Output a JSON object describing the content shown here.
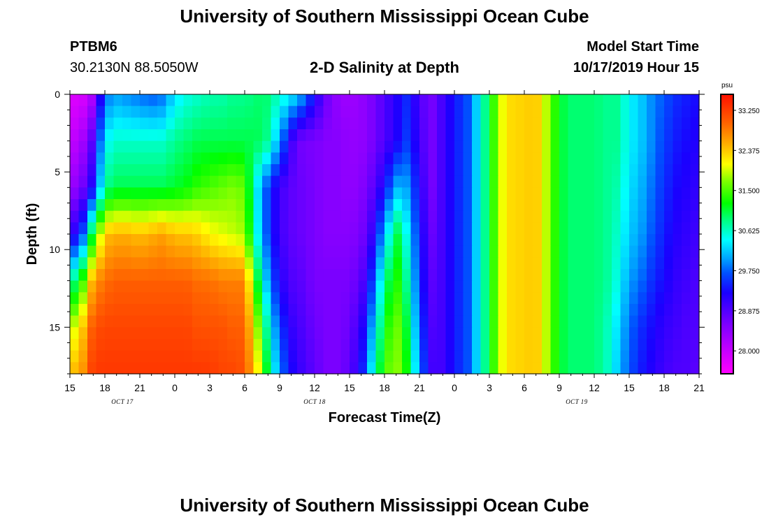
{
  "title_top": "University of Southern Mississippi Ocean Cube",
  "title_bottom": "University of Southern Mississippi Ocean Cube",
  "station": {
    "id": "PTBM6",
    "coords": "30.2130N 88.5050W"
  },
  "plot_title": "2-D Salinity at Depth",
  "model_start": {
    "label": "Model Start Time",
    "value": "10/17/2019 Hour 15"
  },
  "chart_data": {
    "type": "heatmap",
    "title": "2-D Salinity at Depth",
    "xlabel": "Forecast Time(Z)",
    "ylabel": "Depth (ft)",
    "units": "psu",
    "x_ticks": [
      "15",
      "18",
      "21",
      "0",
      "3",
      "6",
      "9",
      "12",
      "15",
      "18",
      "21",
      "0",
      "3",
      "6",
      "9",
      "12",
      "15",
      "18",
      "21"
    ],
    "x_tick_hours": [
      0,
      3,
      6,
      9,
      12,
      15,
      18,
      21,
      24,
      27,
      30,
      33,
      36,
      39,
      42,
      45,
      48,
      51,
      54
    ],
    "date_labels": [
      {
        "text": "OCT 17",
        "hour": 4.5
      },
      {
        "text": "OCT 18",
        "hour": 21
      },
      {
        "text": "OCT 19",
        "hour": 43.5
      }
    ],
    "y_ticks": [
      "0",
      "5",
      "10",
      "15"
    ],
    "y_tick_values": [
      0,
      5,
      10,
      15
    ],
    "ylim": [
      0,
      18
    ],
    "xlim": [
      0,
      54
    ],
    "colorbar": {
      "vmin": 27.5,
      "vmax": 33.6,
      "ticks": [
        "33.250",
        "32.375",
        "31.500",
        "30.625",
        "29.750",
        "28.875",
        "28.000"
      ],
      "tick_values": [
        33.25,
        32.375,
        31.5,
        30.625,
        29.75,
        28.875,
        28.0
      ]
    },
    "depth_rows": [
      0,
      3,
      6,
      9,
      12,
      15,
      18
    ],
    "times_hours": [
      0,
      1,
      2,
      3,
      4,
      5,
      6,
      7,
      8,
      9,
      10,
      11,
      12,
      13,
      14,
      15,
      16,
      17,
      18,
      19,
      20,
      21,
      22,
      23,
      24,
      25,
      26,
      27,
      28,
      29,
      30,
      31,
      32,
      33,
      34,
      35,
      36,
      37,
      38,
      39,
      40,
      41,
      42,
      43,
      44,
      45,
      46,
      47,
      48,
      49,
      50,
      51,
      52,
      53,
      54
    ],
    "salinity": [
      [
        27.8,
        27.8,
        28.2,
        29.8,
        30.0,
        29.9,
        29.8,
        29.7,
        29.8,
        30.3,
        30.5,
        30.6,
        30.7,
        30.7,
        30.8,
        30.8,
        30.9,
        30.9,
        30.6,
        30.4,
        30.0,
        29.3,
        28.7,
        28.4,
        28.3,
        28.4,
        28.6,
        28.9,
        29.2,
        29.5,
        28.9,
        28.6,
        29.0,
        29.4,
        29.6,
        30.3,
        31.1,
        32.0,
        32.3,
        32.3,
        32.4,
        31.8,
        31.1,
        30.9,
        30.9,
        30.9,
        30.8,
        30.8,
        30.4,
        30.2,
        29.9,
        29.7,
        29.5,
        29.4,
        29.3
      ],
      [
        28.0,
        28.2,
        28.9,
        30.4,
        30.6,
        30.6,
        30.6,
        30.6,
        30.6,
        30.8,
        30.9,
        31.0,
        31.0,
        31.0,
        31.0,
        31.0,
        31.0,
        30.8,
        30.0,
        29.0,
        28.6,
        28.6,
        28.5,
        28.5,
        28.4,
        28.4,
        28.6,
        28.9,
        29.2,
        29.6,
        29.0,
        28.6,
        29.0,
        29.4,
        29.6,
        30.3,
        31.1,
        32.0,
        32.3,
        32.3,
        32.4,
        31.8,
        31.1,
        30.9,
        30.9,
        30.9,
        30.8,
        30.8,
        30.4,
        30.2,
        29.9,
        29.6,
        29.4,
        29.3,
        29.2
      ],
      [
        28.3,
        28.6,
        29.3,
        30.8,
        31.0,
        31.0,
        31.0,
        31.0,
        31.0,
        31.1,
        31.2,
        31.4,
        31.5,
        31.6,
        31.7,
        31.6,
        30.4,
        29.6,
        29.0,
        28.8,
        28.7,
        28.6,
        28.5,
        28.5,
        28.4,
        28.5,
        28.8,
        29.3,
        30.1,
        30.0,
        29.2,
        28.6,
        29.0,
        29.4,
        29.6,
        30.3,
        31.1,
        32.0,
        32.3,
        32.3,
        32.4,
        31.8,
        31.1,
        30.9,
        30.9,
        30.9,
        30.8,
        30.7,
        30.3,
        30.1,
        29.8,
        29.5,
        29.3,
        29.2,
        29.1
      ],
      [
        29.0,
        29.5,
        31.2,
        32.4,
        32.5,
        32.5,
        32.4,
        32.5,
        32.6,
        32.4,
        32.4,
        32.3,
        32.1,
        32.0,
        31.9,
        31.8,
        30.5,
        29.6,
        29.0,
        28.8,
        28.7,
        28.6,
        28.5,
        28.5,
        28.5,
        28.6,
        29.1,
        30.1,
        31.1,
        30.4,
        29.4,
        28.7,
        29.0,
        29.4,
        29.6,
        30.3,
        31.1,
        32.0,
        32.3,
        32.3,
        32.4,
        31.8,
        31.1,
        30.9,
        30.9,
        30.9,
        30.8,
        30.6,
        30.2,
        30.0,
        29.7,
        29.4,
        29.2,
        29.1,
        29.0
      ],
      [
        30.6,
        31.3,
        32.6,
        32.9,
        33.0,
        33.0,
        33.0,
        33.0,
        33.0,
        33.0,
        33.0,
        32.9,
        32.9,
        32.8,
        32.8,
        32.8,
        31.2,
        30.0,
        29.2,
        28.9,
        28.8,
        28.6,
        28.6,
        28.6,
        28.6,
        28.8,
        29.6,
        30.8,
        31.4,
        30.7,
        29.5,
        28.8,
        29.0,
        29.4,
        29.6,
        30.3,
        31.1,
        32.0,
        32.3,
        32.3,
        32.4,
        31.8,
        31.1,
        30.9,
        30.9,
        30.9,
        30.8,
        30.5,
        30.0,
        29.8,
        29.5,
        29.3,
        29.1,
        29.0,
        28.9
      ],
      [
        31.8,
        32.3,
        33.1,
        33.2,
        33.2,
        33.2,
        33.2,
        33.2,
        33.2,
        33.2,
        33.2,
        33.1,
        33.1,
        33.1,
        33.0,
        33.0,
        31.9,
        30.6,
        29.6,
        29.1,
        28.9,
        28.7,
        28.6,
        28.6,
        28.7,
        29.1,
        30.1,
        31.2,
        31.7,
        31.0,
        29.7,
        28.9,
        29.0,
        29.4,
        29.6,
        30.3,
        31.1,
        32.0,
        32.3,
        32.3,
        32.4,
        31.8,
        31.1,
        30.9,
        30.9,
        30.9,
        30.7,
        30.3,
        29.8,
        29.5,
        29.3,
        29.1,
        29.0,
        28.9,
        28.9
      ],
      [
        32.4,
        32.6,
        33.3,
        33.3,
        33.3,
        33.3,
        33.3,
        33.3,
        33.3,
        33.3,
        33.3,
        33.3,
        33.3,
        33.2,
        33.2,
        33.1,
        32.3,
        31.0,
        29.9,
        29.3,
        29.0,
        28.8,
        28.6,
        28.6,
        28.8,
        29.3,
        30.5,
        31.5,
        31.8,
        31.2,
        29.9,
        29.0,
        29.0,
        29.4,
        29.6,
        30.3,
        31.1,
        32.0,
        32.3,
        32.3,
        32.4,
        31.8,
        31.1,
        30.9,
        30.9,
        30.9,
        30.7,
        30.2,
        29.7,
        29.4,
        29.2,
        29.0,
        28.9,
        28.9,
        28.8
      ]
    ]
  }
}
